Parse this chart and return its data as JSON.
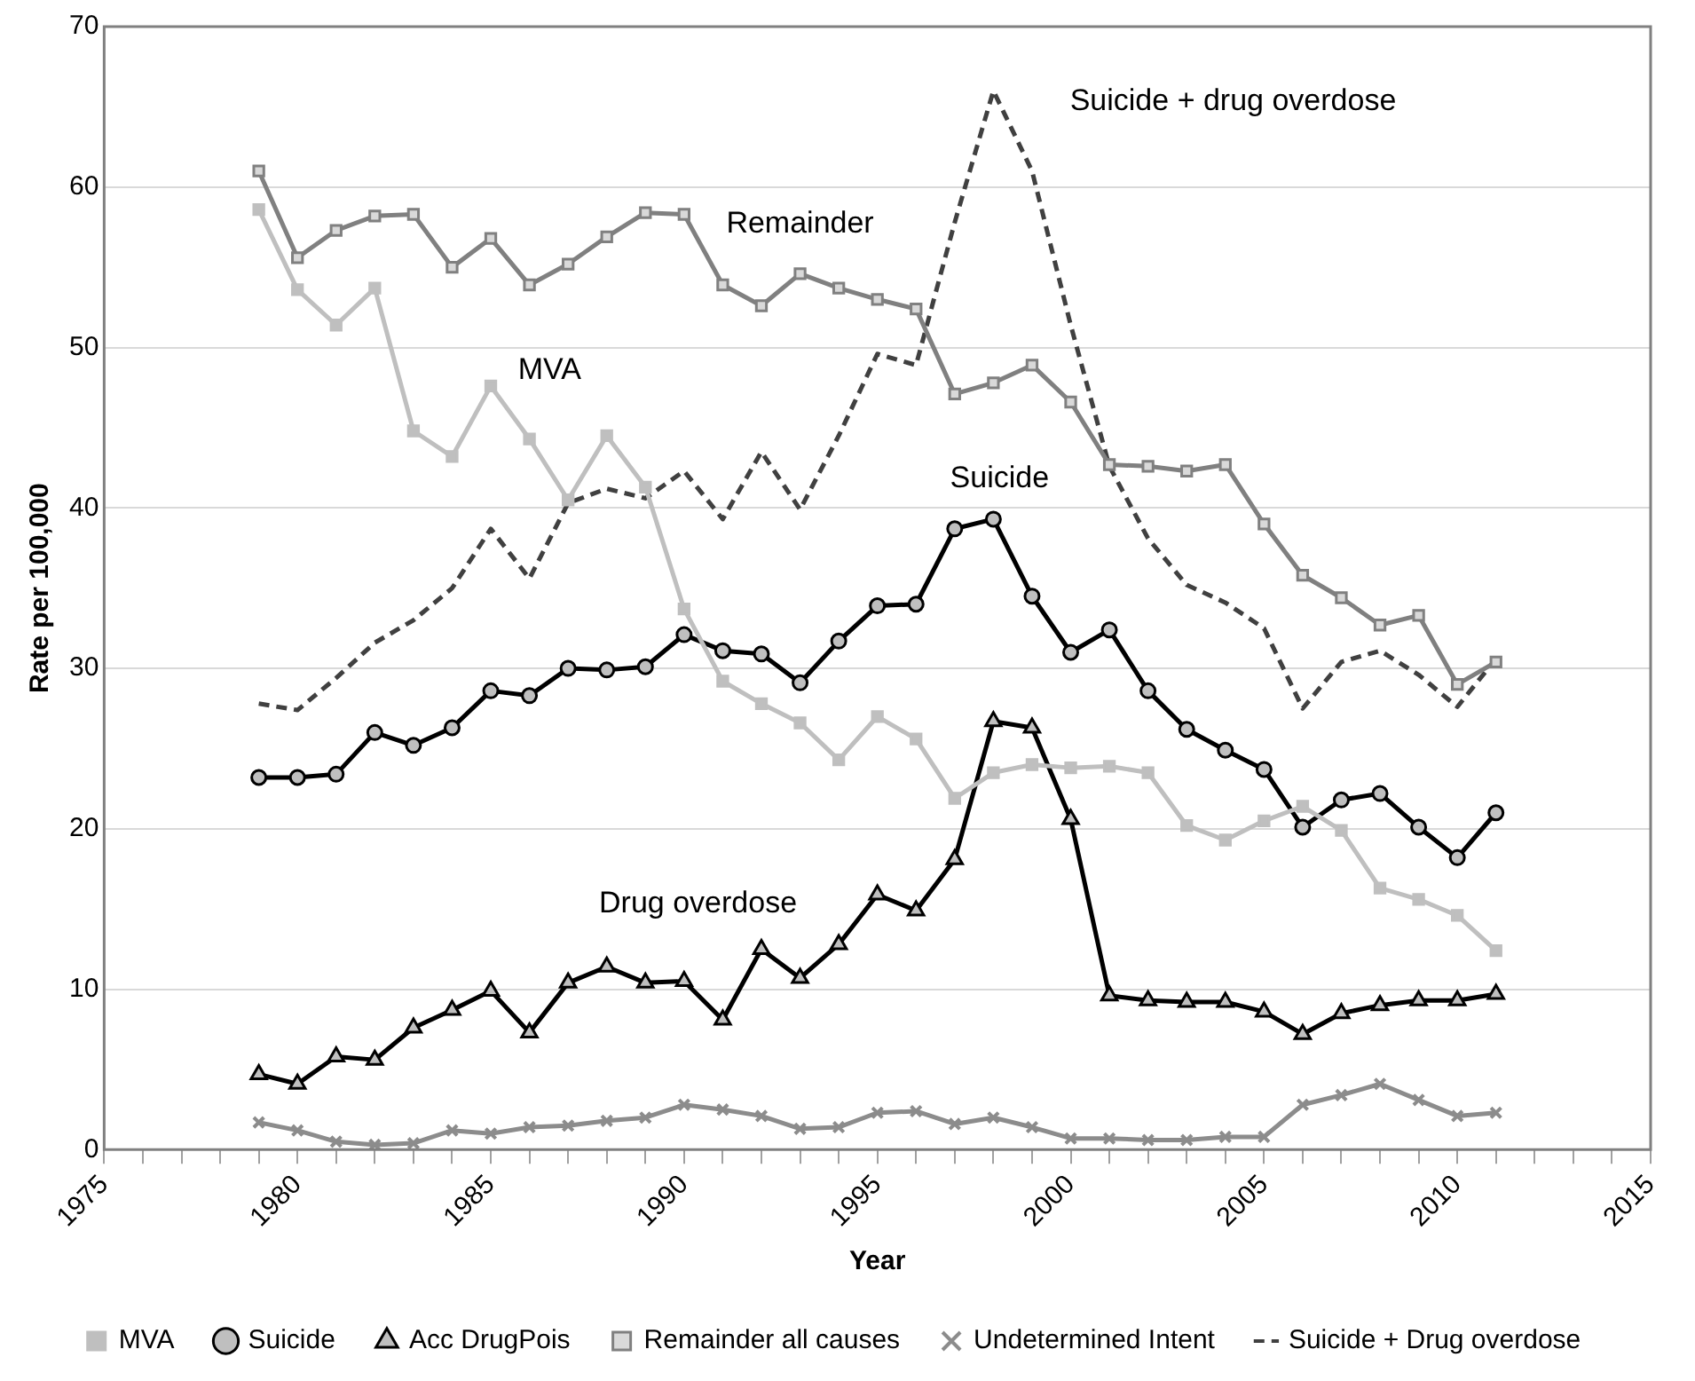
{
  "chart_data": {
    "type": "line",
    "xlabel": "Year",
    "ylabel": "Rate per 100,000",
    "x": [
      1979,
      1980,
      1981,
      1982,
      1983,
      1984,
      1985,
      1986,
      1987,
      1988,
      1989,
      1990,
      1991,
      1992,
      1993,
      1994,
      1995,
      1996,
      1997,
      1998,
      1999,
      2000,
      2001,
      2002,
      2003,
      2004,
      2005,
      2006,
      2007,
      2008,
      2009,
      2010,
      2011
    ],
    "series": [
      {
        "name": "MVA",
        "color": "#bfbfbf",
        "marker": "square",
        "values": [
          58.6,
          53.6,
          51.4,
          53.7,
          44.8,
          43.2,
          47.6,
          44.3,
          40.5,
          44.5,
          41.3,
          33.7,
          29.2,
          27.8,
          26.6,
          24.3,
          27.0,
          25.6,
          21.9,
          23.5,
          24.0,
          23.8,
          23.9,
          23.5,
          20.2,
          19.3,
          20.5,
          21.4,
          19.9,
          16.3,
          15.6,
          14.6,
          12.4
        ]
      },
      {
        "name": "Suicide",
        "color": "#000000",
        "marker": "circle",
        "values": [
          23.2,
          23.2,
          23.4,
          26.0,
          25.2,
          26.3,
          28.6,
          28.3,
          30.0,
          29.9,
          30.1,
          32.1,
          31.1,
          30.9,
          29.1,
          31.7,
          33.9,
          34.0,
          38.7,
          39.3,
          34.5,
          31.0,
          32.4,
          28.6,
          26.2,
          24.9,
          23.7,
          20.1,
          21.8,
          22.2,
          20.1,
          18.2,
          21.0
        ]
      },
      {
        "name": "Acc DrugPois",
        "color": "#000000",
        "marker": "triangle",
        "values": [
          4.7,
          4.1,
          5.8,
          5.6,
          7.6,
          8.7,
          9.9,
          7.3,
          10.4,
          11.4,
          10.4,
          10.5,
          8.1,
          12.5,
          10.7,
          12.8,
          15.9,
          14.9,
          18.1,
          26.7,
          26.3,
          20.6,
          9.6,
          9.3,
          9.2,
          9.2,
          8.6,
          7.2,
          8.5,
          9.0,
          9.3,
          9.3,
          9.7
        ]
      },
      {
        "name": "Remainder all causes",
        "color": "#808080",
        "marker": "square",
        "values": [
          61.0,
          55.6,
          57.3,
          58.2,
          58.3,
          55.0,
          56.8,
          53.9,
          55.2,
          56.9,
          58.4,
          58.3,
          53.9,
          52.6,
          54.6,
          53.7,
          53.0,
          52.4,
          47.1,
          47.8,
          48.9,
          46.6,
          42.7,
          42.6,
          42.3,
          42.7,
          39.0,
          35.8,
          34.4,
          32.7,
          33.3,
          29.0,
          30.4
        ]
      },
      {
        "name": "Undetermined Intent",
        "color": "#8c8c8c",
        "marker": "cross",
        "values": [
          1.7,
          1.2,
          0.5,
          0.3,
          0.4,
          1.2,
          1.0,
          1.4,
          1.5,
          1.8,
          2.0,
          2.8,
          2.5,
          2.1,
          1.3,
          1.4,
          2.3,
          2.4,
          1.6,
          2.0,
          1.4,
          0.7,
          0.7,
          0.6,
          0.6,
          0.8,
          0.8,
          2.8,
          3.4,
          4.1,
          3.1,
          2.1,
          2.3
        ]
      },
      {
        "name": "Suicide + Drug overdose",
        "color": "#404040",
        "marker": "none",
        "line_style": "dashed",
        "values": [
          27.8,
          27.4,
          29.4,
          31.6,
          33.0,
          35.0,
          38.7,
          35.6,
          40.3,
          41.2,
          40.6,
          42.3,
          39.3,
          43.5,
          39.9,
          44.5,
          49.6,
          48.9,
          57.8,
          66.0,
          61.0,
          51.4,
          42.6,
          38.1,
          35.2,
          34.1,
          32.5,
          27.5,
          30.4,
          31.1,
          29.6,
          27.6,
          30.6
        ]
      }
    ],
    "xlim": [
      1975,
      2015
    ],
    "xticks": [
      1975,
      {
        "value": 1976,
        "label": null
      },
      {
        "value": 1977,
        "label": null
      },
      {
        "value": 1978,
        "label": null
      },
      {
        "value": 1979,
        "label": null
      },
      1980,
      {
        "value": 1981,
        "label": null
      },
      {
        "value": 1982,
        "label": null
      },
      {
        "value": 1983,
        "label": null
      },
      {
        "value": 1984,
        "label": null
      },
      1985,
      {
        "value": 1986,
        "label": null
      },
      {
        "value": 1987,
        "label": null
      },
      {
        "value": 1988,
        "label": null
      },
      {
        "value": 1989,
        "label": null
      },
      1990,
      {
        "value": 1991,
        "label": null
      },
      {
        "value": 1992,
        "label": null
      },
      {
        "value": 1993,
        "label": null
      },
      {
        "value": 1994,
        "label": null
      },
      1995,
      {
        "value": 1996,
        "label": null
      },
      {
        "value": 1997,
        "label": null
      },
      {
        "value": 1998,
        "label": null
      },
      {
        "value": 1999,
        "label": null
      },
      2000,
      {
        "value": 2001,
        "label": null
      },
      {
        "value": 2002,
        "label": null
      },
      {
        "value": 2003,
        "label": null
      },
      {
        "value": 2004,
        "label": null
      },
      2005,
      {
        "value": 2006,
        "label": null
      },
      {
        "value": 2007,
        "label": null
      },
      {
        "value": 2008,
        "label": null
      },
      {
        "value": 2009,
        "label": null
      },
      2010,
      {
        "value": 2011,
        "label": null
      },
      {
        "value": 2012,
        "label": null
      },
      {
        "value": 2013,
        "label": null
      },
      {
        "value": 2014,
        "label": null
      },
      2015
    ],
    "ylim": [
      0,
      70
    ],
    "yticks": [
      0,
      10,
      20,
      30,
      40,
      50,
      60,
      70
    ],
    "grid": "y",
    "legend": "bottom",
    "annotations": [
      "Remainder",
      "MVA",
      "Suicide",
      "Drug overdose",
      "Suicide + drug overdose"
    ]
  }
}
